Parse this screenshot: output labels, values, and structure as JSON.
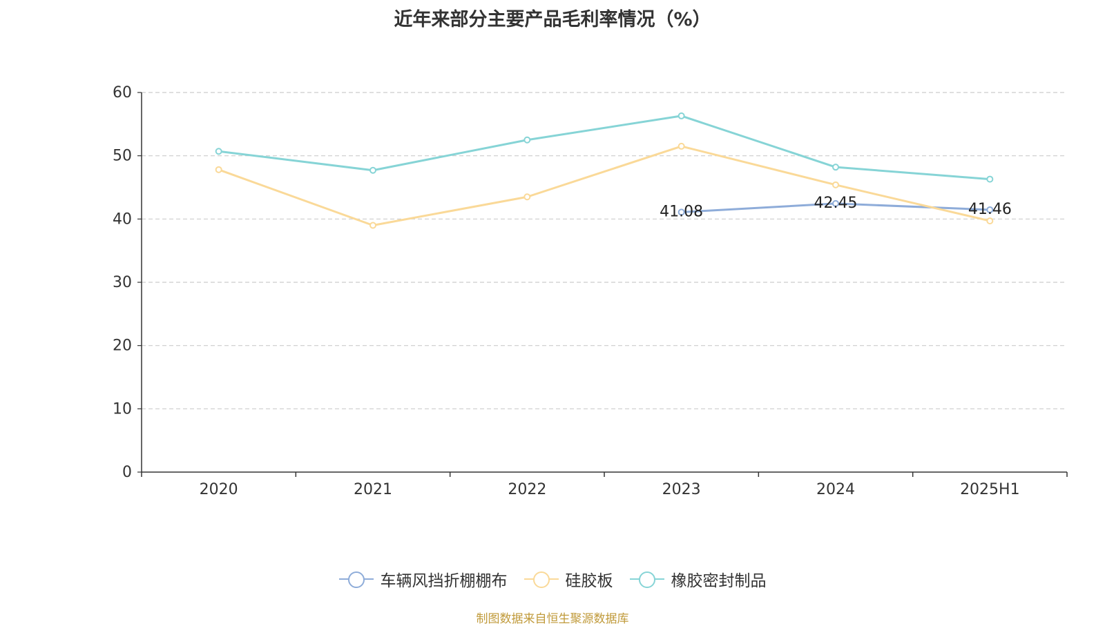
{
  "chart_data": {
    "type": "line",
    "title": "近年来部分主要产品毛利率情况（%）",
    "categories": [
      "2020",
      "2021",
      "2022",
      "2023",
      "2024",
      "2025H1"
    ],
    "ylim": [
      0,
      60
    ],
    "yticks": [
      "0",
      "10",
      "20",
      "30",
      "40",
      "50",
      "60"
    ],
    "grid": true,
    "legend_position": "bottom",
    "series": [
      {
        "name": "车辆风挡折棚棚布",
        "color": "#8eacd9",
        "values": [
          null,
          null,
          null,
          41.08,
          42.45,
          41.46
        ],
        "labels": [
          "",
          "",
          "",
          "41.08",
          "42.45",
          "41.46"
        ]
      },
      {
        "name": "硅胶板",
        "color": "#fad998",
        "values": [
          47.8,
          39.0,
          43.5,
          51.5,
          45.4,
          39.7
        ]
      },
      {
        "name": "橡胶密封制品",
        "color": "#86d4d6",
        "values": [
          50.7,
          47.7,
          52.5,
          56.3,
          48.2,
          46.3
        ]
      }
    ]
  },
  "source": "制图数据来自恒生聚源数据库"
}
